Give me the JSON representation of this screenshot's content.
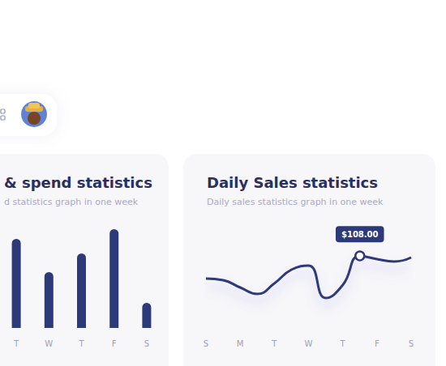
{
  "chart_data": [
    {
      "type": "bar",
      "title": "& spend statistics",
      "subtitle": "d statistics graph in one week",
      "categories": [
        "T",
        "W",
        "T",
        "F",
        "S"
      ],
      "values": [
        110,
        69,
        92,
        122,
        31
      ],
      "color": "#2d3a7a",
      "ylim": [
        0,
        130
      ],
      "grid": false,
      "tick_labels": "x"
    },
    {
      "type": "line",
      "title": "Daily Sales statistics",
      "subtitle": "Daily sales statistics graph in one week",
      "categories": [
        "S",
        null,
        "M",
        null,
        "T",
        null,
        "W",
        null,
        "T",
        null,
        "F",
        null,
        "S"
      ],
      "values": [
        80,
        78,
        69,
        61,
        74,
        91,
        96,
        56,
        72,
        108,
        104,
        101,
        106
      ],
      "annotation": {
        "text": "$108.00",
        "value": 108
      },
      "color": "#2d3a7a",
      "ylim": [
        30,
        140
      ],
      "grid": false,
      "tick_labels": "x"
    }
  ]
}
